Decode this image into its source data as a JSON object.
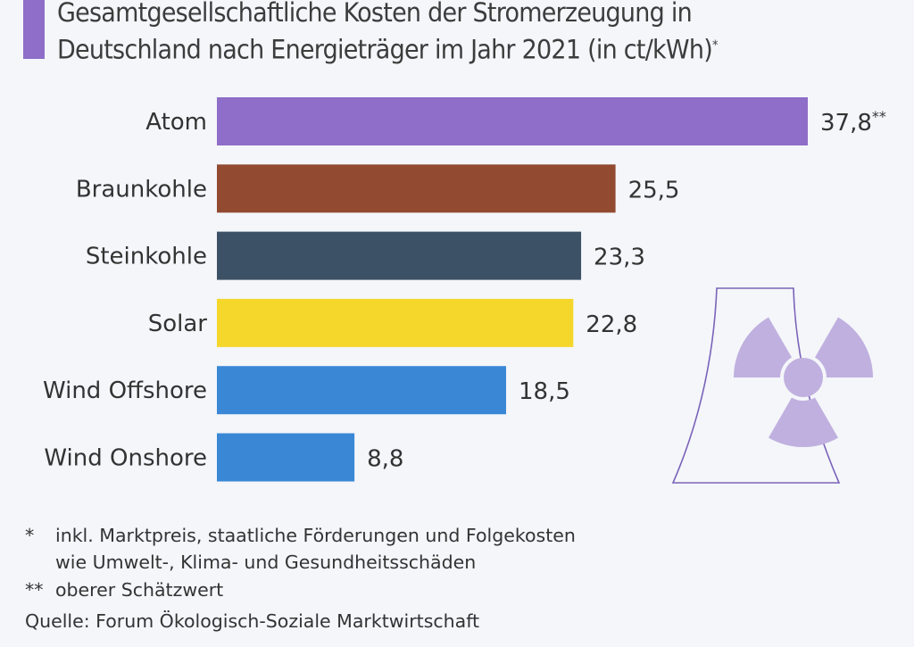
{
  "accent_color": "#8e6ec8",
  "title_line1": "Gesamtgesellschaftliche Kosten der Stromerzeugung in",
  "title_line2": "Deutschland nach Energieträger im Jahr 2021 (in ct/kWh)",
  "title_mark": "*",
  "chart_data": {
    "type": "bar",
    "orientation": "horizontal",
    "title": "Gesamtgesellschaftliche Kosten der Stromerzeugung in Deutschland nach Energieträger im Jahr 2021 (in ct/kWh)*",
    "categories": [
      "Atom",
      "Braunkohle",
      "Steinkohle",
      "Solar",
      "Wind Offshore",
      "Wind Onshore"
    ],
    "values": [
      37.8,
      25.5,
      23.3,
      22.8,
      18.5,
      8.8
    ],
    "value_labels": [
      "37,8",
      "25,5",
      "23,3",
      "22,8",
      "18,5",
      "8,8"
    ],
    "label_suffixes": [
      "**",
      "",
      "",
      "",
      "",
      ""
    ],
    "colors": [
      "#8e6ec8",
      "#924a31",
      "#3d5166",
      "#f5d72c",
      "#3a87d6",
      "#3a87d6"
    ],
    "xlim": [
      0,
      37.8
    ],
    "grid": false,
    "xlabel": "",
    "ylabel": ""
  },
  "footnotes": [
    {
      "mark": "*",
      "text": "inkl. Marktpreis, staatliche Förderungen und Folgekosten"
    },
    {
      "mark": "",
      "text": "wie Umwelt-, Klima- und Gesundheitsschäden"
    },
    {
      "mark": "**",
      "text": "oberer Schätzwert"
    }
  ],
  "source": "Quelle: Forum Ökologisch-Soziale Marktwirtschaft",
  "icon_color": "#c0b0df",
  "icon_stroke": "#7b63b8"
}
